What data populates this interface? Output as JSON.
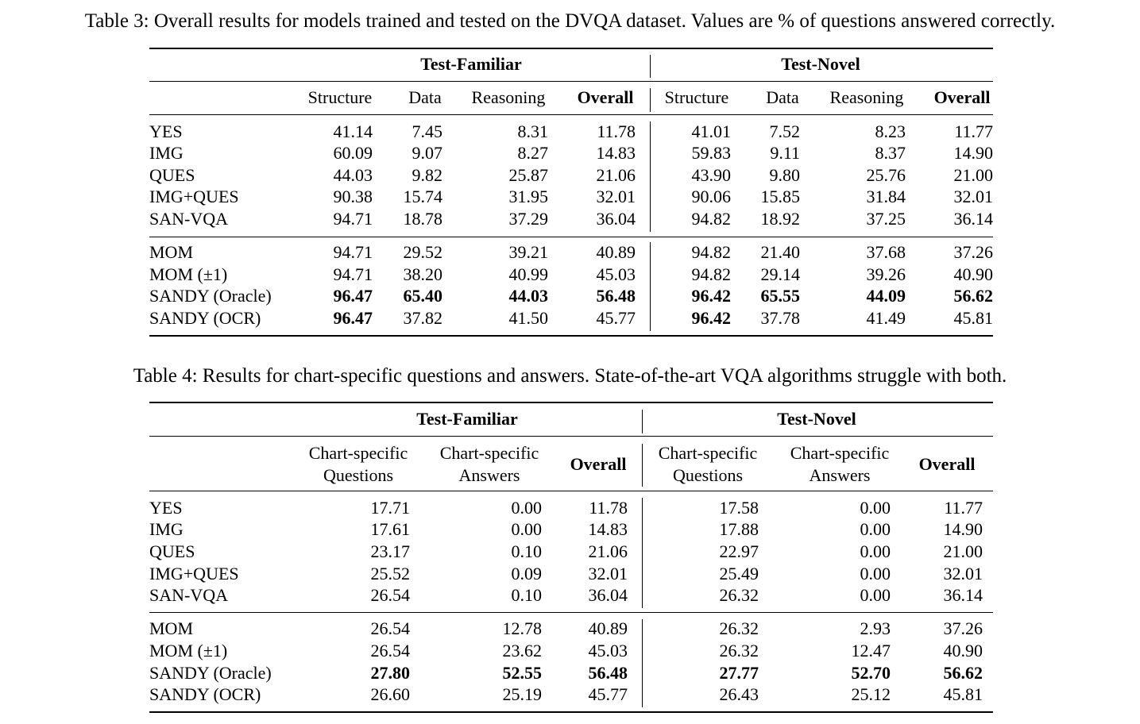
{
  "table3": {
    "caption": "Table 3: Overall results for models trained and tested on the DVQA dataset. Values are % of questions answered correctly.",
    "group_headers": [
      "Test-Familiar",
      "Test-Novel"
    ],
    "columns": [
      "Structure",
      "Data",
      "Reasoning",
      "Overall",
      "Structure",
      "Data",
      "Reasoning",
      "Overall"
    ],
    "rows": [
      {
        "name": "YES",
        "values": [
          "41.14",
          "7.45",
          "8.31",
          "11.78",
          "41.01",
          "7.52",
          "8.23",
          "11.77"
        ]
      },
      {
        "name": "IMG",
        "values": [
          "60.09",
          "9.07",
          "8.27",
          "14.83",
          "59.83",
          "9.11",
          "8.37",
          "14.90"
        ]
      },
      {
        "name": "QUES",
        "values": [
          "44.03",
          "9.82",
          "25.87",
          "21.06",
          "43.90",
          "9.80",
          "25.76",
          "21.00"
        ]
      },
      {
        "name": "IMG+QUES",
        "values": [
          "90.38",
          "15.74",
          "31.95",
          "32.01",
          "90.06",
          "15.85",
          "31.84",
          "32.01"
        ]
      },
      {
        "name": "SAN-VQA",
        "values": [
          "94.71",
          "18.78",
          "37.29",
          "36.04",
          "94.82",
          "18.92",
          "37.25",
          "36.14"
        ]
      },
      {
        "name": "MOM",
        "values": [
          "94.71",
          "29.52",
          "39.21",
          "40.89",
          "94.82",
          "21.40",
          "37.68",
          "37.26"
        ]
      },
      {
        "name": "MOM (±1)",
        "values": [
          "94.71",
          "38.20",
          "40.99",
          "45.03",
          "94.82",
          "29.14",
          "39.26",
          "40.90"
        ]
      },
      {
        "name": "SANDY (Oracle)",
        "values": [
          "96.47",
          "65.40",
          "44.03",
          "56.48",
          "96.42",
          "65.55",
          "44.09",
          "56.62"
        ]
      },
      {
        "name": "SANDY (OCR)",
        "values": [
          "96.47",
          "37.82",
          "41.50",
          "45.77",
          "96.42",
          "37.78",
          "41.49",
          "45.81"
        ]
      }
    ]
  },
  "table4": {
    "caption": "Table 4: Results for chart-specific questions and answers. State-of-the-art VQA algorithms struggle with both.",
    "group_headers": [
      "Test-Familiar",
      "Test-Novel"
    ],
    "columns": [
      [
        "Chart-specific",
        "Questions"
      ],
      [
        "Chart-specific",
        "Answers"
      ],
      [
        "Overall"
      ],
      [
        "Chart-specific",
        "Questions"
      ],
      [
        "Chart-specific",
        "Answers"
      ],
      [
        "Overall"
      ]
    ],
    "rows": [
      {
        "name": "YES",
        "values": [
          "17.71",
          "0.00",
          "11.78",
          "17.58",
          "0.00",
          "11.77"
        ]
      },
      {
        "name": "IMG",
        "values": [
          "17.61",
          "0.00",
          "14.83",
          "17.88",
          "0.00",
          "14.90"
        ]
      },
      {
        "name": "QUES",
        "values": [
          "23.17",
          "0.10",
          "21.06",
          "22.97",
          "0.00",
          "21.00"
        ]
      },
      {
        "name": "IMG+QUES",
        "values": [
          "25.52",
          "0.09",
          "32.01",
          "25.49",
          "0.00",
          "32.01"
        ]
      },
      {
        "name": "SAN-VQA",
        "values": [
          "26.54",
          "0.10",
          "36.04",
          "26.32",
          "0.00",
          "36.14"
        ]
      },
      {
        "name": "MOM",
        "values": [
          "26.54",
          "12.78",
          "40.89",
          "26.32",
          "2.93",
          "37.26"
        ]
      },
      {
        "name": "MOM (±1)",
        "values": [
          "26.54",
          "23.62",
          "45.03",
          "26.32",
          "12.47",
          "40.90"
        ]
      },
      {
        "name": "SANDY (Oracle)",
        "values": [
          "27.80",
          "52.55",
          "56.48",
          "27.77",
          "52.70",
          "56.62"
        ]
      },
      {
        "name": "SANDY (OCR)",
        "values": [
          "26.60",
          "25.19",
          "45.77",
          "26.43",
          "25.12",
          "45.81"
        ]
      }
    ]
  }
}
